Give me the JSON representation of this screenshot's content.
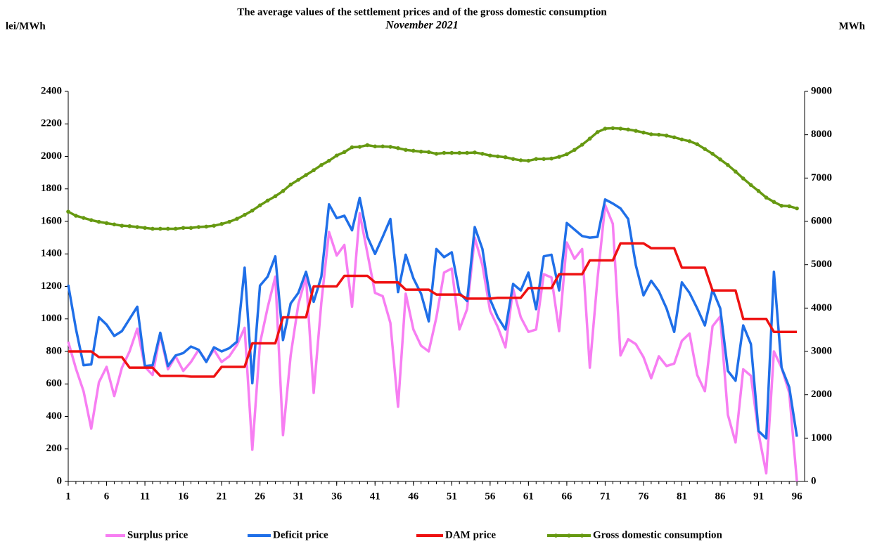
{
  "chart_data": {
    "type": "line",
    "title": "The average values of the settlement prices and of the gross domestic consumption",
    "subtitle": "November 2021",
    "y_label": "lei/MWh",
    "y2_label": "MWh",
    "x": [
      1,
      2,
      3,
      4,
      5,
      6,
      7,
      8,
      9,
      10,
      11,
      12,
      13,
      14,
      15,
      16,
      17,
      18,
      19,
      20,
      21,
      22,
      23,
      24,
      25,
      26,
      27,
      28,
      29,
      30,
      31,
      32,
      33,
      34,
      35,
      36,
      37,
      38,
      39,
      40,
      41,
      42,
      43,
      44,
      45,
      46,
      47,
      48,
      49,
      50,
      51,
      52,
      53,
      54,
      55,
      56,
      57,
      58,
      59,
      60,
      61,
      62,
      63,
      64,
      65,
      66,
      67,
      68,
      69,
      70,
      71,
      72,
      73,
      74,
      75,
      76,
      77,
      78,
      79,
      80,
      81,
      82,
      83,
      84,
      85,
      86,
      87,
      88,
      89,
      90,
      91,
      92,
      93,
      94,
      95,
      96
    ],
    "xlim": [
      1,
      97
    ],
    "xticks": [
      1,
      6,
      11,
      16,
      21,
      26,
      31,
      36,
      41,
      46,
      51,
      56,
      61,
      66,
      71,
      76,
      81,
      86,
      91,
      96
    ],
    "ylim": [
      0,
      2400
    ],
    "yticks": [
      0,
      200,
      400,
      600,
      800,
      1000,
      1200,
      1400,
      1600,
      1800,
      2000,
      2200,
      2400
    ],
    "y2lim": [
      0,
      9000
    ],
    "y2ticks": [
      0,
      1000,
      2000,
      3000,
      4000,
      5000,
      6000,
      7000,
      8000,
      9000
    ],
    "grid": false,
    "legend": "bottom",
    "series": [
      {
        "name": "Surplus price",
        "color": "#f77ef2",
        "values": [
          860,
          695,
          555,
          325,
          610,
          705,
          525,
          700,
          800,
          940,
          705,
          655,
          905,
          690,
          770,
          680,
          735,
          810,
          740,
          810,
          735,
          770,
          840,
          945,
          195,
          850,
          1070,
          1260,
          285,
          775,
          1090,
          1260,
          545,
          1100,
          1535,
          1390,
          1455,
          1075,
          1650,
          1405,
          1160,
          1140,
          975,
          460,
          1155,
          935,
          835,
          800,
          1010,
          1285,
          1310,
          935,
          1060,
          1500,
          1330,
          1050,
          950,
          825,
          1185,
          1010,
          920,
          935,
          1275,
          1255,
          925,
          1470,
          1370,
          1430,
          700,
          1245,
          1700,
          1585,
          775,
          875,
          845,
          765,
          635,
          770,
          710,
          725,
          865,
          910,
          655,
          555,
          955,
          1015,
          410,
          240,
          690,
          650,
          295,
          50,
          800,
          700,
          545,
          0
        ]
      },
      {
        "name": "Deficit price",
        "color": "#1f6fe8",
        "values": [
          1210,
          940,
          715,
          720,
          1010,
          965,
          895,
          925,
          1000,
          1075,
          710,
          715,
          915,
          710,
          775,
          790,
          830,
          810,
          735,
          825,
          800,
          820,
          860,
          1315,
          605,
          1205,
          1260,
          1385,
          870,
          1095,
          1160,
          1290,
          1105,
          1260,
          1705,
          1620,
          1635,
          1545,
          1745,
          1505,
          1400,
          1505,
          1615,
          1165,
          1395,
          1250,
          1155,
          985,
          1430,
          1380,
          1410,
          1160,
          1110,
          1565,
          1430,
          1120,
          1010,
          935,
          1215,
          1175,
          1285,
          1060,
          1385,
          1395,
          1175,
          1590,
          1550,
          1510,
          1500,
          1505,
          1735,
          1710,
          1680,
          1615,
          1330,
          1145,
          1235,
          1170,
          1065,
          920,
          1225,
          1160,
          1065,
          960,
          1180,
          1065,
          680,
          620,
          960,
          845,
          310,
          265,
          1290,
          700,
          580,
          275
        ]
      },
      {
        "name": "DAM price",
        "color": "#ee1111",
        "values": [
          800,
          800,
          800,
          800,
          765,
          765,
          765,
          765,
          700,
          700,
          700,
          700,
          650,
          650,
          650,
          650,
          645,
          645,
          645,
          645,
          705,
          705,
          705,
          705,
          850,
          850,
          850,
          850,
          1010,
          1010,
          1010,
          1010,
          1200,
          1200,
          1200,
          1200,
          1265,
          1265,
          1265,
          1265,
          1225,
          1225,
          1225,
          1225,
          1180,
          1180,
          1180,
          1180,
          1150,
          1150,
          1150,
          1150,
          1125,
          1125,
          1125,
          1125,
          1130,
          1130,
          1130,
          1130,
          1190,
          1190,
          1190,
          1190,
          1275,
          1275,
          1275,
          1275,
          1360,
          1360,
          1360,
          1360,
          1465,
          1465,
          1465,
          1465,
          1435,
          1435,
          1435,
          1435,
          1315,
          1315,
          1315,
          1315,
          1175,
          1175,
          1175,
          1175,
          1000,
          1000,
          1000,
          1000,
          920,
          920,
          920,
          920
        ]
      },
      {
        "name": "Gross domestic consumption",
        "color": "#669911",
        "axis": "y2",
        "marker": true,
        "values": [
          6225,
          6130,
          6080,
          6030,
          5990,
          5960,
          5930,
          5900,
          5890,
          5870,
          5850,
          5830,
          5830,
          5830,
          5830,
          5850,
          5850,
          5870,
          5880,
          5900,
          5940,
          5990,
          6060,
          6150,
          6250,
          6370,
          6480,
          6580,
          6700,
          6850,
          6960,
          7070,
          7180,
          7300,
          7400,
          7520,
          7600,
          7710,
          7720,
          7760,
          7730,
          7730,
          7720,
          7690,
          7650,
          7630,
          7610,
          7600,
          7560,
          7580,
          7580,
          7580,
          7580,
          7590,
          7560,
          7520,
          7500,
          7480,
          7440,
          7410,
          7400,
          7440,
          7440,
          7450,
          7490,
          7550,
          7650,
          7770,
          7910,
          8060,
          8140,
          8150,
          8140,
          8120,
          8090,
          8050,
          8010,
          8000,
          7980,
          7940,
          7890,
          7850,
          7780,
          7670,
          7560,
          7430,
          7300,
          7150,
          6990,
          6840,
          6700,
          6550,
          6450,
          6360,
          6350,
          6300
        ]
      }
    ]
  }
}
